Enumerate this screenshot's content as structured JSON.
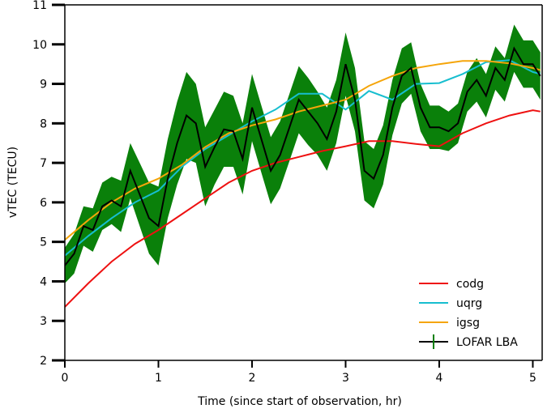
{
  "chart_data": {
    "type": "line",
    "xlabel": "Time (since start of observation, hr)",
    "ylabel": "vTEC (TECU)",
    "xlim": [
      0,
      5.1
    ],
    "ylim": [
      2,
      11
    ],
    "xticks": [
      0,
      1,
      2,
      3,
      4,
      5
    ],
    "yticks": [
      2,
      3,
      4,
      5,
      6,
      7,
      8,
      9,
      10,
      11
    ],
    "grid": false,
    "legend_position": "lower-right",
    "colors": {
      "codg": "#ee1111",
      "uqrg": "#17becf",
      "igsg": "#f5a50a",
      "lofar_line": "#000000",
      "lofar_err": "#0a800a"
    },
    "series": [
      {
        "name": "codg",
        "x": [
          0,
          0.25,
          0.5,
          0.75,
          1.0,
          1.25,
          1.5,
          1.75,
          2.0,
          2.25,
          2.5,
          2.75,
          3.0,
          3.25,
          3.5,
          3.75,
          4.0,
          4.25,
          4.5,
          4.75,
          5.0,
          5.08
        ],
        "values": [
          3.35,
          3.95,
          4.5,
          4.95,
          5.3,
          5.7,
          6.1,
          6.5,
          6.8,
          7.0,
          7.15,
          7.3,
          7.42,
          7.55,
          7.55,
          7.48,
          7.42,
          7.75,
          8.0,
          8.2,
          8.33,
          8.3
        ]
      },
      {
        "name": "uqrg",
        "x": [
          0,
          0.25,
          0.5,
          0.75,
          1.0,
          1.25,
          1.5,
          1.75,
          2.0,
          2.25,
          2.5,
          2.75,
          3.0,
          3.25,
          3.5,
          3.75,
          4.0,
          4.25,
          4.5,
          4.75,
          5.0,
          5.08
        ],
        "values": [
          4.65,
          5.15,
          5.6,
          6.0,
          6.3,
          6.9,
          7.35,
          7.7,
          8.05,
          8.35,
          8.75,
          8.75,
          8.35,
          8.82,
          8.6,
          9.0,
          9.02,
          9.25,
          9.55,
          9.6,
          9.3,
          9.25
        ]
      },
      {
        "name": "igsg",
        "x": [
          0,
          0.25,
          0.5,
          0.75,
          1.0,
          1.25,
          1.5,
          1.75,
          2.0,
          2.25,
          2.5,
          2.75,
          3.0,
          3.25,
          3.5,
          3.75,
          4.0,
          4.25,
          4.5,
          4.75,
          5.0,
          5.08
        ],
        "values": [
          5.05,
          5.55,
          6.0,
          6.35,
          6.6,
          6.95,
          7.4,
          7.75,
          7.95,
          8.1,
          8.3,
          8.45,
          8.6,
          8.95,
          9.2,
          9.4,
          9.5,
          9.58,
          9.58,
          9.52,
          9.4,
          9.35
        ]
      },
      {
        "name": "LOFAR LBA",
        "x": [
          0,
          0.1,
          0.2,
          0.3,
          0.4,
          0.5,
          0.6,
          0.7,
          0.8,
          0.9,
          1.0,
          1.1,
          1.2,
          1.3,
          1.4,
          1.5,
          1.6,
          1.7,
          1.8,
          1.9,
          2.0,
          2.1,
          2.2,
          2.3,
          2.4,
          2.5,
          2.6,
          2.7,
          2.8,
          2.9,
          3.0,
          3.1,
          3.2,
          3.3,
          3.4,
          3.5,
          3.6,
          3.7,
          3.8,
          3.9,
          4.0,
          4.1,
          4.2,
          4.3,
          4.4,
          4.5,
          4.6,
          4.7,
          4.8,
          4.9,
          5.0,
          5.08
        ],
        "values": [
          4.4,
          4.7,
          5.4,
          5.3,
          5.9,
          6.05,
          5.9,
          6.8,
          6.2,
          5.6,
          5.4,
          6.6,
          7.5,
          8.2,
          8.0,
          6.9,
          7.4,
          7.85,
          7.8,
          7.1,
          8.4,
          7.6,
          6.8,
          7.2,
          7.9,
          8.6,
          8.3,
          8.0,
          7.6,
          8.3,
          9.5,
          8.6,
          6.8,
          6.6,
          7.2,
          8.4,
          9.2,
          9.4,
          8.4,
          7.9,
          7.9,
          7.8,
          8.0,
          8.8,
          9.1,
          8.7,
          9.4,
          9.1,
          9.9,
          9.5,
          9.5,
          9.2
        ],
        "error": [
          0.45,
          0.5,
          0.5,
          0.55,
          0.6,
          0.6,
          0.65,
          0.7,
          0.8,
          0.9,
          1.0,
          1.0,
          1.05,
          1.1,
          1.0,
          1.0,
          0.95,
          0.95,
          0.9,
          0.9,
          0.85,
          0.85,
          0.85,
          0.85,
          0.85,
          0.85,
          0.85,
          0.8,
          0.8,
          0.8,
          0.8,
          0.8,
          0.75,
          0.75,
          0.75,
          0.7,
          0.7,
          0.65,
          0.6,
          0.55,
          0.55,
          0.5,
          0.5,
          0.5,
          0.55,
          0.55,
          0.55,
          0.55,
          0.6,
          0.6,
          0.6,
          0.6
        ]
      }
    ]
  }
}
